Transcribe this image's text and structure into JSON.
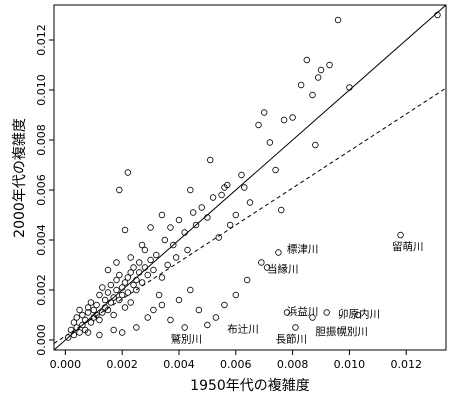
{
  "chart_data": {
    "type": "scatter",
    "title": "",
    "xlabel": "1950年代の複雑度",
    "ylabel": "2000年代の複雑度",
    "xlim": [
      -0.0004,
      0.0134
    ],
    "ylim": [
      -0.0004,
      0.0134
    ],
    "x_ticks": [
      0.0,
      0.002,
      0.004,
      0.006,
      0.008,
      0.01,
      0.012
    ],
    "x_tick_labels": [
      "0.000",
      "0.002",
      "0.004",
      "0.006",
      "0.008",
      "0.010",
      "0.012"
    ],
    "y_ticks": [
      0.0,
      0.002,
      0.004,
      0.006,
      0.008,
      0.01,
      0.012
    ],
    "y_tick_labels": [
      "0.000",
      "0.002",
      "0.004",
      "0.006",
      "0.008",
      "0.010",
      "0.012"
    ],
    "grid": false,
    "legend": "none",
    "lines": [
      {
        "style": "solid",
        "slope": 1.0,
        "intercept": 0.0
      },
      {
        "style": "dashed",
        "slope": 0.74,
        "intercept": 0.00016
      }
    ],
    "points": [
      [
        0.0001,
        0.0001
      ],
      [
        0.0002,
        0.0004
      ],
      [
        0.0003,
        0.0002
      ],
      [
        0.0003,
        0.0007
      ],
      [
        0.0004,
        0.0005
      ],
      [
        0.0004,
        0.0009
      ],
      [
        0.0005,
        0.0003
      ],
      [
        0.0005,
        0.0012
      ],
      [
        0.0006,
        0.0006
      ],
      [
        0.0006,
        0.001
      ],
      [
        0.0007,
        0.0004
      ],
      [
        0.0007,
        0.0008
      ],
      [
        0.0008,
        0.0013
      ],
      [
        0.0008,
        0.0011
      ],
      [
        0.0009,
        0.0007
      ],
      [
        0.0009,
        0.0015
      ],
      [
        0.001,
        0.0009
      ],
      [
        0.001,
        0.0012
      ],
      [
        0.0011,
        0.001
      ],
      [
        0.0011,
        0.0014
      ],
      [
        0.0012,
        0.0008
      ],
      [
        0.0012,
        0.0018
      ],
      [
        0.0013,
        0.0011
      ],
      [
        0.0013,
        0.0021
      ],
      [
        0.0014,
        0.0013
      ],
      [
        0.0014,
        0.0016
      ],
      [
        0.0015,
        0.0012
      ],
      [
        0.0015,
        0.0019
      ],
      [
        0.0016,
        0.0015
      ],
      [
        0.0016,
        0.0022
      ],
      [
        0.0017,
        0.0017
      ],
      [
        0.0017,
        0.001
      ],
      [
        0.0018,
        0.002
      ],
      [
        0.0018,
        0.0024
      ],
      [
        0.0019,
        0.0016
      ],
      [
        0.0019,
        0.0026
      ],
      [
        0.002,
        0.0021
      ],
      [
        0.002,
        0.0018
      ],
      [
        0.0021,
        0.0023
      ],
      [
        0.0021,
        0.0013
      ],
      [
        0.0022,
        0.0025
      ],
      [
        0.0022,
        0.0019
      ],
      [
        0.0023,
        0.0027
      ],
      [
        0.0023,
        0.0015
      ],
      [
        0.0024,
        0.0022
      ],
      [
        0.0024,
        0.0029
      ],
      [
        0.0025,
        0.002
      ],
      [
        0.0025,
        0.0024
      ],
      [
        0.0026,
        0.0027
      ],
      [
        0.0026,
        0.0031
      ],
      [
        0.0027,
        0.0023
      ],
      [
        0.0028,
        0.0029
      ],
      [
        0.0028,
        0.0036
      ],
      [
        0.0029,
        0.0026
      ],
      [
        0.003,
        0.0032
      ],
      [
        0.0031,
        0.0028
      ],
      [
        0.0032,
        0.0034
      ],
      [
        0.0033,
        0.0018
      ],
      [
        0.0034,
        0.0025
      ],
      [
        0.0035,
        0.004
      ],
      [
        0.0036,
        0.003
      ],
      [
        0.0037,
        0.0045
      ],
      [
        0.0038,
        0.0038
      ],
      [
        0.0039,
        0.0033
      ],
      [
        0.004,
        0.0048
      ],
      [
        0.0042,
        0.0043
      ],
      [
        0.0043,
        0.0036
      ],
      [
        0.0045,
        0.0051
      ],
      [
        0.0046,
        0.0046
      ],
      [
        0.0048,
        0.0053
      ],
      [
        0.005,
        0.0049
      ],
      [
        0.0052,
        0.0057
      ],
      [
        0.0054,
        0.0041
      ],
      [
        0.0055,
        0.0058
      ],
      [
        0.0057,
        0.0062
      ],
      [
        0.0058,
        0.0046
      ],
      [
        0.006,
        0.005
      ],
      [
        0.0062,
        0.0066
      ],
      [
        0.0063,
        0.0061
      ],
      [
        0.0065,
        0.0055
      ],
      [
        0.0068,
        0.0086
      ],
      [
        0.007,
        0.0091
      ],
      [
        0.0072,
        0.0079
      ],
      [
        0.0074,
        0.0068
      ],
      [
        0.0076,
        0.0052
      ],
      [
        0.0077,
        0.0088
      ],
      [
        0.008,
        0.0089
      ],
      [
        0.0083,
        0.0102
      ],
      [
        0.0085,
        0.0112
      ],
      [
        0.0087,
        0.0098
      ],
      [
        0.0088,
        0.0078
      ],
      [
        0.0089,
        0.0105
      ],
      [
        0.009,
        0.0108
      ],
      [
        0.0093,
        0.011
      ],
      [
        0.0096,
        0.0128
      ],
      [
        0.01,
        0.0101
      ],
      [
        0.0131,
        0.013
      ],
      [
        0.0019,
        0.006
      ],
      [
        0.0022,
        0.0067
      ],
      [
        0.0021,
        0.0044
      ],
      [
        0.003,
        0.0045
      ],
      [
        0.0034,
        0.005
      ],
      [
        0.0044,
        0.006
      ],
      [
        0.0051,
        0.0072
      ],
      [
        0.0056,
        0.0061
      ],
      [
        0.0034,
        0.0014
      ],
      [
        0.0037,
        0.0008
      ],
      [
        0.004,
        0.0016
      ],
      [
        0.0042,
        0.0005
      ],
      [
        0.0044,
        0.002
      ],
      [
        0.0047,
        0.0012
      ],
      [
        0.005,
        0.0006
      ],
      [
        0.0053,
        0.0009
      ],
      [
        0.0056,
        0.0014
      ],
      [
        0.006,
        0.0018
      ],
      [
        0.0064,
        0.0024
      ],
      [
        0.0069,
        0.0031
      ],
      [
        0.0071,
        0.0029
      ],
      [
        0.0075,
        0.0035
      ],
      [
        0.0078,
        0.0011
      ],
      [
        0.0081,
        0.0005
      ],
      [
        0.0087,
        0.0009
      ],
      [
        0.0092,
        0.0011
      ],
      [
        0.0103,
        0.001
      ],
      [
        0.0118,
        0.0042
      ],
      [
        0.0025,
        0.0005
      ],
      [
        0.0029,
        0.0009
      ],
      [
        0.0031,
        0.0012
      ],
      [
        0.002,
        0.0003
      ],
      [
        0.0017,
        0.0004
      ],
      [
        0.0012,
        0.0002
      ],
      [
        0.0008,
        0.0003
      ],
      [
        0.0015,
        0.0028
      ],
      [
        0.0018,
        0.0031
      ],
      [
        0.0023,
        0.0033
      ],
      [
        0.0027,
        0.0038
      ]
    ],
    "annotations": [
      {
        "text": "標津川",
        "x": 0.0078,
        "y": 0.0035
      },
      {
        "text": "当縁川",
        "x": 0.0071,
        "y": 0.0027
      },
      {
        "text": "留萌川",
        "x": 0.0115,
        "y": 0.0036
      },
      {
        "text": "浜益川",
        "x": 0.0078,
        "y": 0.001
      },
      {
        "text": "卯原内川",
        "x": 0.0096,
        "y": 0.0009
      },
      {
        "text": "胆振幌別川",
        "x": 0.0088,
        "y": 0.0002
      },
      {
        "text": "長節川",
        "x": 0.0074,
        "y": -0.0001
      },
      {
        "text": "布辻川",
        "x": 0.0057,
        "y": 0.0003
      },
      {
        "text": "鷲別川",
        "x": 0.0037,
        "y": -0.0001
      }
    ]
  }
}
